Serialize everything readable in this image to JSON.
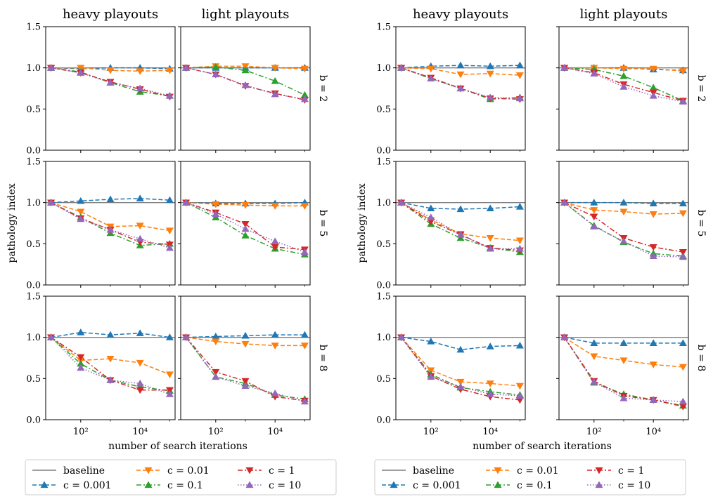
{
  "chart_data": [
    {
      "type": "line",
      "group": "left",
      "ylabel": "pathology index",
      "xlabel": "number of search iterations",
      "columns": [
        "heavy playouts",
        "light playouts"
      ],
      "row_labels": [
        "b = 2",
        "b = 5",
        "b = 8"
      ],
      "x": [
        10,
        100,
        1000,
        10000,
        100000
      ],
      "xscale": "log",
      "xticks": [
        "10²",
        "10⁴"
      ],
      "ylim": [
        0,
        1.5
      ],
      "yticks": [
        "0.0",
        "0.5",
        "1.0",
        "1.5"
      ],
      "grid": false,
      "legend": {
        "placement": "bottom",
        "entries": [
          "baseline",
          "c = 0.001",
          "c = 0.01",
          "c = 0.1",
          "c = 1",
          "c = 10"
        ]
      },
      "panels": [
        {
          "row": 0,
          "col": 0,
          "series": [
            {
              "name": "c = 0.001",
              "values": [
                1.0,
                0.99,
                1.0,
                1.0,
                0.99
              ]
            },
            {
              "name": "c = 0.01",
              "values": [
                1.0,
                1.0,
                0.97,
                0.96,
                0.97
              ]
            },
            {
              "name": "c = 0.1",
              "values": [
                1.0,
                0.95,
                0.82,
                0.71,
                0.66
              ]
            },
            {
              "name": "c = 1",
              "values": [
                1.0,
                0.94,
                0.83,
                0.74,
                0.65
              ]
            },
            {
              "name": "c = 10",
              "values": [
                1.0,
                0.94,
                0.82,
                0.75,
                0.66
              ]
            }
          ]
        },
        {
          "row": 0,
          "col": 1,
          "series": [
            {
              "name": "c = 0.001",
              "values": [
                1.0,
                1.0,
                1.0,
                1.0,
                1.0
              ]
            },
            {
              "name": "c = 0.01",
              "values": [
                1.0,
                1.02,
                1.02,
                1.0,
                0.99
              ]
            },
            {
              "name": "c = 0.1",
              "values": [
                1.0,
                1.01,
                0.97,
                0.84,
                0.67
              ]
            },
            {
              "name": "c = 1",
              "values": [
                1.0,
                0.92,
                0.78,
                0.69,
                0.61
              ]
            },
            {
              "name": "c = 10",
              "values": [
                1.0,
                0.92,
                0.79,
                0.68,
                0.62
              ]
            }
          ]
        },
        {
          "row": 1,
          "col": 0,
          "series": [
            {
              "name": "c = 0.001",
              "values": [
                1.0,
                1.02,
                1.04,
                1.05,
                1.03
              ]
            },
            {
              "name": "c = 0.01",
              "values": [
                1.0,
                0.89,
                0.71,
                0.72,
                0.66
              ]
            },
            {
              "name": "c = 0.1",
              "values": [
                1.0,
                0.82,
                0.63,
                0.48,
                0.5
              ]
            },
            {
              "name": "c = 1",
              "values": [
                1.0,
                0.81,
                0.67,
                0.52,
                0.49
              ]
            },
            {
              "name": "c = 10",
              "values": [
                1.0,
                0.8,
                0.67,
                0.56,
                0.45
              ]
            }
          ]
        },
        {
          "row": 1,
          "col": 1,
          "series": [
            {
              "name": "c = 0.001",
              "values": [
                1.0,
                0.99,
                0.99,
                0.99,
                1.0
              ]
            },
            {
              "name": "c = 0.01",
              "values": [
                1.0,
                0.98,
                0.97,
                0.96,
                0.96
              ]
            },
            {
              "name": "c = 0.1",
              "values": [
                1.0,
                0.82,
                0.6,
                0.44,
                0.37
              ]
            },
            {
              "name": "c = 1",
              "values": [
                1.0,
                0.88,
                0.74,
                0.46,
                0.43
              ]
            },
            {
              "name": "c = 10",
              "values": [
                1.0,
                0.86,
                0.68,
                0.53,
                0.4
              ]
            }
          ]
        },
        {
          "row": 2,
          "col": 0,
          "series": [
            {
              "name": "c = 0.001",
              "values": [
                1.0,
                1.06,
                1.03,
                1.05,
                1.0
              ]
            },
            {
              "name": "c = 0.01",
              "values": [
                1.0,
                0.72,
                0.74,
                0.69,
                0.55
              ]
            },
            {
              "name": "c = 0.1",
              "values": [
                1.0,
                0.68,
                0.48,
                0.4,
                0.35
              ]
            },
            {
              "name": "c = 1",
              "values": [
                1.0,
                0.76,
                0.48,
                0.36,
                0.36
              ]
            },
            {
              "name": "c = 10",
              "values": [
                1.0,
                0.63,
                0.48,
                0.44,
                0.31
              ]
            }
          ]
        },
        {
          "row": 2,
          "col": 1,
          "series": [
            {
              "name": "c = 0.001",
              "values": [
                1.0,
                1.01,
                1.02,
                1.03,
                1.03
              ]
            },
            {
              "name": "c = 0.01",
              "values": [
                1.0,
                0.95,
                0.92,
                0.9,
                0.9
              ]
            },
            {
              "name": "c = 0.1",
              "values": [
                1.0,
                0.52,
                0.44,
                0.3,
                0.25
              ]
            },
            {
              "name": "c = 1",
              "values": [
                1.0,
                0.58,
                0.47,
                0.28,
                0.23
              ]
            },
            {
              "name": "c = 10",
              "values": [
                1.0,
                0.52,
                0.41,
                0.32,
                0.22
              ]
            }
          ]
        }
      ]
    },
    {
      "type": "line",
      "group": "right",
      "ylabel": "pathology index",
      "xlabel": "number of search iterations",
      "columns": [
        "heavy playouts",
        "light playouts"
      ],
      "row_labels": [
        "b = 2",
        "b = 5",
        "b = 8"
      ],
      "x": [
        10,
        100,
        1000,
        10000,
        100000
      ],
      "xscale": "log",
      "xticks": [
        "10²",
        "10⁴"
      ],
      "ylim": [
        0,
        1.5
      ],
      "yticks": [
        "0.0",
        "0.5",
        "1.0",
        "1.5"
      ],
      "grid": false,
      "legend": {
        "placement": "bottom",
        "entries": [
          "baseline",
          "c = 0.001",
          "c = 0.01",
          "c = 0.1",
          "c = 1",
          "c = 10"
        ]
      },
      "panels": [
        {
          "row": 0,
          "col": 0,
          "series": [
            {
              "name": "c = 0.001",
              "values": [
                1.0,
                1.02,
                1.03,
                1.02,
                1.03
              ]
            },
            {
              "name": "c = 0.01",
              "values": [
                1.0,
                0.99,
                0.92,
                0.93,
                0.91
              ]
            },
            {
              "name": "c = 0.1",
              "values": [
                1.0,
                0.87,
                0.75,
                0.62,
                0.64
              ]
            },
            {
              "name": "c = 1",
              "values": [
                1.0,
                0.88,
                0.75,
                0.63,
                0.62
              ]
            },
            {
              "name": "c = 10",
              "values": [
                1.0,
                0.87,
                0.75,
                0.64,
                0.63
              ]
            }
          ]
        },
        {
          "row": 0,
          "col": 1,
          "series": [
            {
              "name": "c = 0.001",
              "values": [
                1.0,
                1.0,
                1.0,
                0.98,
                0.97
              ]
            },
            {
              "name": "c = 0.01",
              "values": [
                1.0,
                1.0,
                0.99,
                0.99,
                0.96
              ]
            },
            {
              "name": "c = 0.1",
              "values": [
                1.0,
                0.98,
                0.9,
                0.76,
                0.6
              ]
            },
            {
              "name": "c = 1",
              "values": [
                1.0,
                0.94,
                0.8,
                0.7,
                0.6
              ]
            },
            {
              "name": "c = 10",
              "values": [
                1.0,
                0.93,
                0.77,
                0.66,
                0.59
              ]
            }
          ]
        },
        {
          "row": 1,
          "col": 0,
          "series": [
            {
              "name": "c = 0.001",
              "values": [
                1.0,
                0.93,
                0.92,
                0.93,
                0.95
              ]
            },
            {
              "name": "c = 0.01",
              "values": [
                1.0,
                0.79,
                0.62,
                0.57,
                0.54
              ]
            },
            {
              "name": "c = 0.1",
              "values": [
                1.0,
                0.74,
                0.57,
                0.45,
                0.4
              ]
            },
            {
              "name": "c = 1",
              "values": [
                1.0,
                0.77,
                0.61,
                0.45,
                0.42
              ]
            },
            {
              "name": "c = 10",
              "values": [
                1.0,
                0.82,
                0.61,
                0.44,
                0.44
              ]
            }
          ]
        },
        {
          "row": 1,
          "col": 1,
          "series": [
            {
              "name": "c = 0.001",
              "values": [
                1.0,
                1.0,
                1.0,
                0.99,
                0.99
              ]
            },
            {
              "name": "c = 0.01",
              "values": [
                1.0,
                0.91,
                0.89,
                0.86,
                0.87
              ]
            },
            {
              "name": "c = 0.1",
              "values": [
                1.0,
                0.72,
                0.52,
                0.38,
                0.35
              ]
            },
            {
              "name": "c = 1",
              "values": [
                1.0,
                0.83,
                0.57,
                0.46,
                0.4
              ]
            },
            {
              "name": "c = 10",
              "values": [
                1.0,
                0.71,
                0.53,
                0.35,
                0.34
              ]
            }
          ]
        },
        {
          "row": 2,
          "col": 0,
          "series": [
            {
              "name": "c = 0.001",
              "values": [
                1.0,
                0.95,
                0.85,
                0.89,
                0.9
              ]
            },
            {
              "name": "c = 0.01",
              "values": [
                1.0,
                0.6,
                0.46,
                0.44,
                0.41
              ]
            },
            {
              "name": "c = 0.1",
              "values": [
                1.0,
                0.55,
                0.39,
                0.34,
                0.3
              ]
            },
            {
              "name": "c = 1",
              "values": [
                1.0,
                0.53,
                0.37,
                0.28,
                0.24
              ]
            },
            {
              "name": "c = 10",
              "values": [
                1.0,
                0.52,
                0.4,
                0.31,
                0.29
              ]
            }
          ]
        },
        {
          "row": 2,
          "col": 1,
          "series": [
            {
              "name": "c = 0.001",
              "values": [
                1.0,
                0.93,
                0.93,
                0.93,
                0.93
              ]
            },
            {
              "name": "c = 0.01",
              "values": [
                1.0,
                0.77,
                0.72,
                0.67,
                0.64
              ]
            },
            {
              "name": "c = 0.1",
              "values": [
                1.0,
                0.45,
                0.31,
                0.24,
                0.17
              ]
            },
            {
              "name": "c = 1",
              "values": [
                1.0,
                0.47,
                0.29,
                0.24,
                0.16
              ]
            },
            {
              "name": "c = 10",
              "values": [
                1.0,
                0.46,
                0.26,
                0.24,
                0.22
              ]
            }
          ]
        }
      ]
    }
  ],
  "series_styles": [
    {
      "name": "baseline",
      "color": "#808080",
      "dash": "none",
      "marker": "none"
    },
    {
      "name": "c = 0.001",
      "color": "#1f77b4",
      "dash": "dashed",
      "marker": "triangle-up"
    },
    {
      "name": "c = 0.01",
      "color": "#ff7f0e",
      "dash": "dashed",
      "marker": "triangle-down"
    },
    {
      "name": "c = 0.1",
      "color": "#2ca02c",
      "dash": "dashdot",
      "marker": "triangle-up"
    },
    {
      "name": "c = 1",
      "color": "#d62728",
      "dash": "dashdot",
      "marker": "triangle-down"
    },
    {
      "name": "c = 10",
      "color": "#9467bd",
      "dash": "dotted",
      "marker": "triangle-up"
    }
  ]
}
